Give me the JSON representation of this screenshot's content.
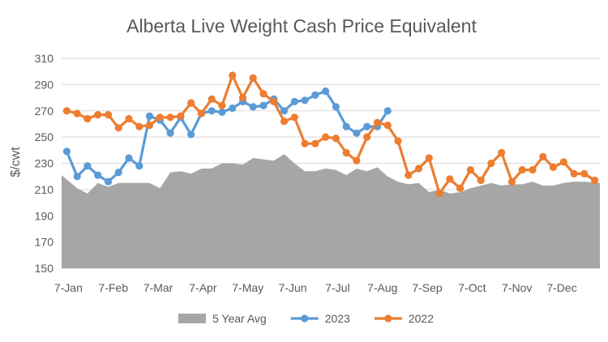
{
  "chart_data": {
    "type": "line",
    "title": "Alberta Live Weight Cash Price Equivalent",
    "ylabel": "$/cwt",
    "xlabel": "",
    "ylim": [
      150,
      310
    ],
    "yticks": [
      150,
      170,
      190,
      210,
      230,
      250,
      270,
      290,
      310
    ],
    "xticks": [
      "7-Jan",
      "7-Feb",
      "7-Mar",
      "7-Apr",
      "7-May",
      "7-Jun",
      "7-Jul",
      "7-Aug",
      "7-Sep",
      "7-Oct",
      "7-Nov",
      "7-Dec"
    ],
    "x_week_unit": "week of year",
    "grid": true,
    "legend_position": "bottom",
    "series": [
      {
        "name": "5 Year Avg",
        "kind": "area",
        "color": "#a6a6a6",
        "x": [
          1,
          2,
          3,
          4,
          5,
          6,
          7,
          8,
          9,
          10,
          11,
          12,
          13,
          14,
          15,
          16,
          17,
          18,
          19,
          20,
          21,
          22,
          23,
          24,
          25,
          26,
          27,
          28,
          29,
          30,
          31,
          32,
          33,
          34,
          35,
          36,
          37,
          38,
          39,
          40,
          41,
          42,
          43,
          44,
          45,
          46,
          47,
          48,
          49,
          50,
          51,
          52
        ],
        "values": [
          221,
          211,
          207,
          215,
          212,
          215,
          215,
          215,
          215,
          211,
          223,
          224,
          222,
          226,
          226,
          230,
          230,
          229,
          234,
          233,
          232,
          237,
          230,
          224,
          224,
          226,
          225,
          221,
          226,
          224,
          227,
          220,
          216,
          214,
          215,
          208,
          210,
          207,
          208,
          211,
          213,
          215,
          213,
          214,
          214,
          216,
          213,
          213,
          215,
          216,
          216,
          215
        ]
      },
      {
        "name": "2023",
        "kind": "line",
        "color": "#5b9bd5",
        "x": [
          1,
          2,
          3,
          4,
          5,
          6,
          7,
          8,
          9,
          10,
          11,
          12,
          13,
          14,
          15,
          16,
          17,
          18,
          19,
          20,
          21,
          22,
          23,
          24,
          25,
          26,
          27,
          28,
          29,
          30,
          31,
          32
        ],
        "values": [
          239,
          220,
          228,
          221,
          216,
          223,
          234,
          228,
          266,
          263,
          253,
          265,
          252,
          268,
          270,
          269,
          272,
          277,
          273,
          274,
          279,
          270,
          277,
          278,
          282,
          285,
          273,
          258,
          253,
          258,
          258,
          270
        ]
      },
      {
        "name": "2022",
        "kind": "line",
        "color": "#ed7d31",
        "x": [
          1,
          2,
          3,
          4,
          5,
          6,
          7,
          8,
          9,
          10,
          11,
          12,
          13,
          14,
          15,
          16,
          17,
          18,
          19,
          20,
          21,
          22,
          23,
          24,
          25,
          26,
          27,
          28,
          29,
          30,
          31,
          32,
          33,
          34,
          35,
          36,
          37,
          38,
          39,
          40,
          41,
          42,
          43,
          44,
          45,
          46,
          47,
          48,
          49,
          50,
          51,
          52
        ],
        "values": [
          270,
          268,
          264,
          267,
          267,
          257,
          264,
          258,
          259,
          265,
          265,
          266,
          276,
          268,
          279,
          274,
          297,
          280,
          295,
          283,
          277,
          262,
          265,
          245,
          245,
          250,
          249,
          238,
          232,
          250,
          261,
          259,
          247,
          221,
          226,
          234,
          207,
          218,
          211,
          225,
          217,
          230,
          238,
          216,
          225,
          225,
          235,
          227,
          231,
          222,
          222,
          217
        ]
      }
    ]
  }
}
